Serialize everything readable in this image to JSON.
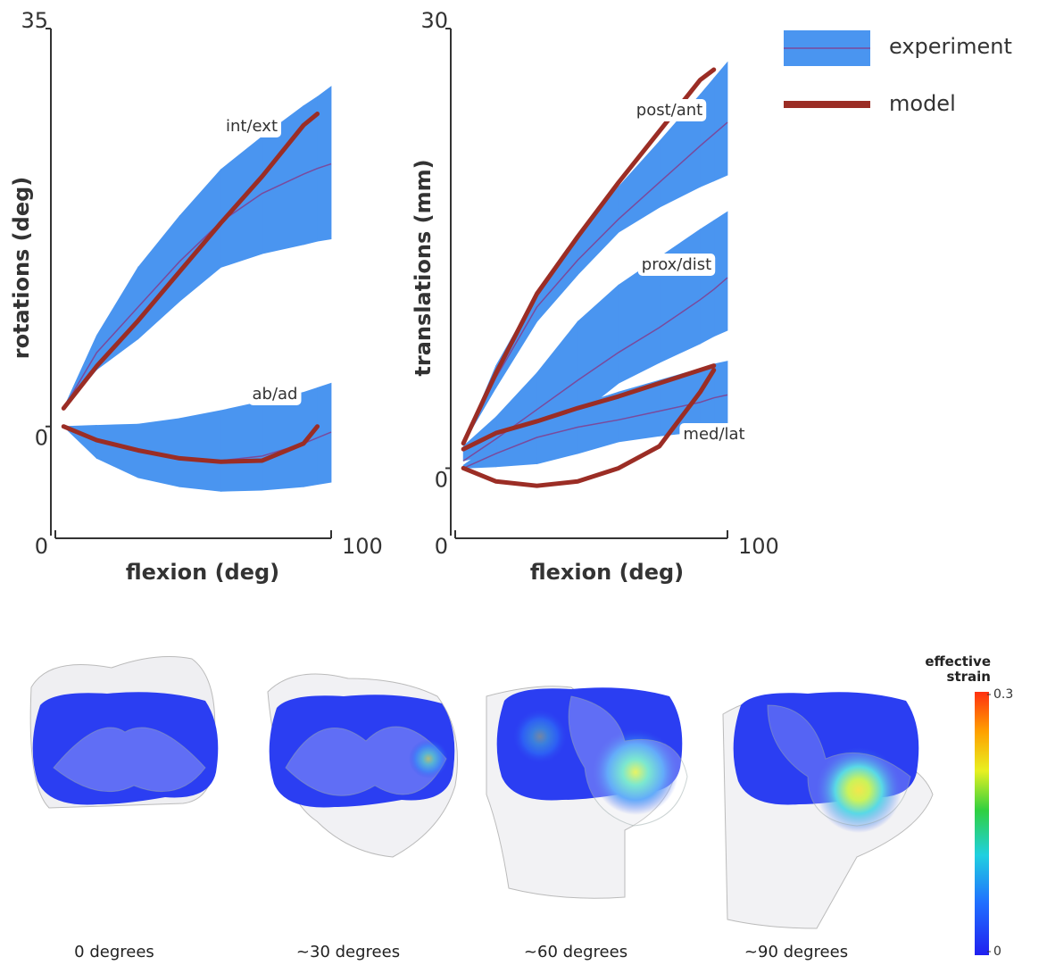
{
  "chart_data": [
    {
      "type": "line",
      "ylabel": "rotations (deg)",
      "xlabel": "flexion (deg)",
      "x": [
        3,
        15,
        30,
        45,
        60,
        75,
        90,
        95,
        100
      ],
      "xlim": [
        0,
        100
      ],
      "xticks": [
        0,
        100
      ],
      "ylim": [
        -9.6,
        35
      ],
      "yticks": [
        0,
        35
      ],
      "groups": [
        {
          "label": "int/ext",
          "upper": [
            1.6,
            8,
            14,
            18.5,
            22.6,
            25.5,
            28.2,
            29,
            29.9
          ],
          "lower": [
            1.6,
            5,
            7.7,
            11,
            14,
            15.2,
            16,
            16.3,
            16.5
          ],
          "mean": [
            1.6,
            6.5,
            10.5,
            14.5,
            18,
            20.5,
            22.2,
            22.7,
            23.1
          ],
          "model": [
            1.6,
            5.3,
            9.3,
            13.6,
            17.9,
            22,
            26.5,
            27.5,
            null
          ]
        },
        {
          "label": "ab/ad",
          "upper": [
            0,
            0.1,
            0.2,
            0.7,
            1.4,
            2.2,
            3.0,
            3.4,
            3.8
          ],
          "lower": [
            0,
            -2.8,
            -4.5,
            -5.3,
            -5.7,
            -5.6,
            -5.3,
            -5.1,
            -4.9
          ],
          "mean": [
            0,
            -1.3,
            -2.2,
            -2.8,
            -3,
            -2.6,
            -1.5,
            -1,
            -0.5
          ],
          "model": [
            0,
            -1.2,
            -2.1,
            -2.8,
            -3.1,
            -3,
            -1.5,
            0,
            null
          ]
        }
      ]
    },
    {
      "type": "line",
      "ylabel": "translations (mm)",
      "xlabel": "flexion (deg)",
      "x": [
        3,
        15,
        30,
        45,
        60,
        75,
        90,
        95,
        100
      ],
      "xlim": [
        0,
        100
      ],
      "xticks": [
        0,
        100
      ],
      "ylim": [
        -4.6,
        30
      ],
      "yticks": [
        0,
        30
      ],
      "groups": [
        {
          "label": "post/ant",
          "upper": [
            1.7,
            7,
            11.9,
            15.8,
            19.2,
            22.3,
            25.5,
            26.6,
            27.7
          ],
          "lower": [
            1.7,
            5.5,
            10,
            13.2,
            16.1,
            17.8,
            19.2,
            19.6,
            20
          ],
          "mean": [
            1.7,
            6.2,
            11,
            14.2,
            17,
            19.5,
            22,
            22.8,
            23.6
          ],
          "model": [
            1.7,
            6.5,
            11.9,
            15.8,
            19.5,
            23,
            26.5,
            27.2,
            null
          ]
        },
        {
          "label": "prox/dist",
          "upper": [
            1.5,
            3.5,
            6.5,
            10,
            12.5,
            14.4,
            16.3,
            16.9,
            17.5
          ],
          "lower": [
            0.5,
            1,
            1.5,
            3.6,
            5.8,
            7.2,
            8.5,
            9,
            9.4
          ],
          "mean": [
            0.5,
            2,
            4,
            6,
            7.9,
            9.6,
            11.5,
            12.2,
            13
          ],
          "model": [
            1.3,
            2.4,
            3.2,
            4.1,
            4.9,
            5.8,
            6.7,
            7,
            null
          ]
        },
        {
          "label": "med/lat",
          "upper": [
            0.2,
            1.8,
            3.3,
            4.3,
            5.2,
            6,
            6.8,
            7.1,
            7.3
          ],
          "lower": [
            0,
            0.1,
            0.3,
            1,
            1.8,
            2.2,
            2.5,
            2.6,
            2.7
          ],
          "mean": [
            0,
            1,
            2.1,
            2.8,
            3.3,
            3.9,
            4.5,
            4.8,
            5
          ],
          "model": [
            0,
            -0.9,
            -1.2,
            -0.9,
            0,
            1.5,
            5.2,
            6.7,
            null
          ]
        }
      ]
    }
  ],
  "legend": [
    {
      "name": "experiment",
      "color": "#4a95f0",
      "line_color": "#7a4a9c"
    },
    {
      "name": "model",
      "color": "#9b2d25"
    }
  ],
  "renders": {
    "captions": [
      "0 degrees",
      "~30 degrees",
      "~60 degrees",
      "~90 degrees"
    ]
  },
  "colorbar": {
    "title": "effective strain",
    "lim": [
      0,
      0.3
    ],
    "ticks": [
      0,
      0.3
    ]
  }
}
